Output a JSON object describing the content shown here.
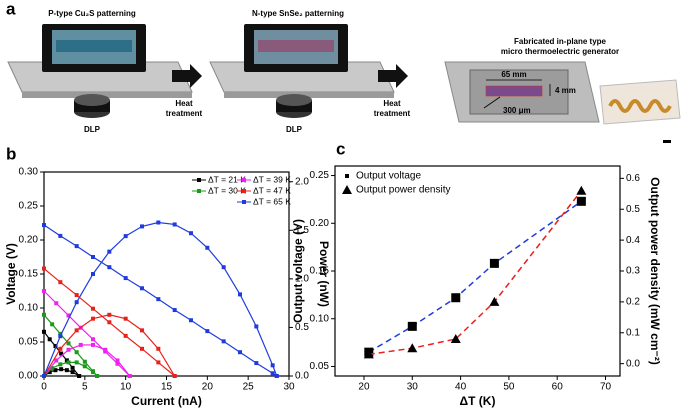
{
  "panel_a": {
    "label": "a",
    "step1": "P-type Cu₂S patterning",
    "step2": "N-type SnSe₂ patterning",
    "step3": [
      "Fabricated in-plane type",
      "micro thermoelectric generator"
    ],
    "light": [
      "DLP",
      "DLP"
    ],
    "heat1": [
      "Heat",
      "treatment"
    ],
    "heat2": [
      "Heat",
      "treatment"
    ],
    "dims": [
      "65 mm",
      "4 mm",
      "300 μm"
    ]
  },
  "chart_data": [
    {
      "type": "line",
      "panel": "b",
      "xlabel": "Current (nA)",
      "ylabel": "Voltage (V)",
      "y2label": "Power (nW)",
      "xlim": [
        0,
        30
      ],
      "xticks": [
        0,
        5,
        10,
        15,
        20,
        25,
        30
      ],
      "ylim": [
        0,
        0.3
      ],
      "yticks": [
        {
          "value": 0,
          "label": "0.00"
        },
        0.05,
        {
          "value": 0.1,
          "label": "0.10"
        },
        0.15,
        {
          "value": 0.2,
          "label": "0.20"
        },
        0.25,
        {
          "value": 0.3,
          "label": "0.30"
        }
      ],
      "y2lim": [
        0,
        2.1
      ],
      "y2ticks": [
        {
          "value": 0,
          "label": "0.0"
        },
        0.5,
        {
          "value": 1,
          "label": "1.0"
        },
        1.5,
        {
          "value": 2,
          "label": "2.0"
        }
      ],
      "legend": "upper right",
      "series": [
        {
          "name": "ΔT = 21 K",
          "color": "#000000",
          "marker": "square",
          "x": [
            0,
            0.7,
            1.4,
            2.1,
            2.8,
            3.5,
            4.3
          ],
          "values": [
            0.065,
            0.054,
            0.044,
            0.033,
            0.023,
            0.012,
            0
          ]
        },
        {
          "name": "ΔT = 30 K",
          "color": "#1a9a1a",
          "marker": "square",
          "x": [
            0,
            1,
            2,
            3,
            4,
            5,
            6,
            6.5
          ],
          "values": [
            0.09,
            0.076,
            0.062,
            0.048,
            0.035,
            0.021,
            0.007,
            0
          ]
        },
        {
          "name": "ΔT = 39 K",
          "color": "#ee22ee",
          "marker": "square",
          "x": [
            0,
            1.5,
            3,
            4.5,
            6,
            7.5,
            9,
            10.5
          ],
          "values": [
            0.125,
            0.107,
            0.089,
            0.071,
            0.054,
            0.036,
            0.018,
            0
          ]
        },
        {
          "name": "ΔT = 47 K",
          "color": "#e8211c",
          "marker": "square",
          "x": [
            0,
            2,
            4,
            6,
            8,
            10,
            12,
            14,
            16
          ],
          "values": [
            0.158,
            0.138,
            0.119,
            0.099,
            0.079,
            0.059,
            0.04,
            0.02,
            0
          ]
        },
        {
          "name": "ΔT = 65 K",
          "color": "#1f3be0",
          "marker": "square",
          "x": [
            0,
            2,
            4,
            6,
            8,
            10,
            12,
            14,
            16,
            18,
            20,
            22,
            24,
            26,
            28,
            28.5
          ],
          "values": [
            0.222,
            0.206,
            0.191,
            0.175,
            0.16,
            0.144,
            0.129,
            0.113,
            0.097,
            0.082,
            0.066,
            0.051,
            0.035,
            0.019,
            0.004,
            0
          ]
        },
        {
          "axis": "y2",
          "color": "#000000",
          "marker": "square",
          "x": [
            0,
            0.7,
            1.4,
            2.1,
            2.8,
            3.5,
            4.3
          ],
          "values": [
            0,
            0.04,
            0.06,
            0.07,
            0.06,
            0.04,
            0
          ]
        },
        {
          "axis": "y2",
          "color": "#1a9a1a",
          "marker": "square",
          "x": [
            0,
            1,
            2,
            3,
            4,
            5,
            6,
            6.5
          ],
          "values": [
            0,
            0.08,
            0.12,
            0.14,
            0.14,
            0.1,
            0.04,
            0
          ]
        },
        {
          "axis": "y2",
          "color": "#ee22ee",
          "marker": "square",
          "x": [
            0,
            1.5,
            3,
            4.5,
            6,
            7.5,
            9,
            10.5
          ],
          "values": [
            0,
            0.16,
            0.27,
            0.32,
            0.32,
            0.27,
            0.16,
            0
          ]
        },
        {
          "axis": "y2",
          "color": "#e8211c",
          "marker": "square",
          "x": [
            0,
            2,
            4,
            6,
            8,
            10,
            12,
            14,
            16
          ],
          "values": [
            0,
            0.28,
            0.47,
            0.59,
            0.63,
            0.59,
            0.47,
            0.28,
            0
          ]
        },
        {
          "axis": "y2",
          "color": "#1f3be0",
          "marker": "square",
          "x": [
            0,
            2,
            4,
            6,
            8,
            10,
            12,
            14,
            16,
            18,
            20,
            22,
            24,
            26,
            28,
            28.5
          ],
          "values": [
            0,
            0.41,
            0.76,
            1.05,
            1.28,
            1.44,
            1.54,
            1.58,
            1.56,
            1.47,
            1.32,
            1.12,
            0.84,
            0.51,
            0.11,
            0
          ]
        }
      ]
    },
    {
      "type": "scatter",
      "panel": "c",
      "xlabel": "ΔT (K)",
      "ylabel": "Output voltage (V)",
      "y2label": "Output power density (mW cm⁻²)",
      "x": [
        21,
        30,
        39,
        47,
        65
      ],
      "xlim": [
        14,
        73
      ],
      "xticks": [
        20,
        30,
        40,
        50,
        60,
        70
      ],
      "ylim": [
        0.04,
        0.26
      ],
      "yticks": [
        0.05,
        {
          "value": 0.1,
          "label": "0.10"
        },
        0.15,
        {
          "value": 0.2,
          "label": "0.20"
        },
        0.25
      ],
      "y2lim": [
        -0.04,
        0.64
      ],
      "y2ticks": [
        {
          "value": 0,
          "label": "0.0"
        },
        0.1,
        0.2,
        0.3,
        0.4,
        0.5,
        0.6
      ],
      "legend": "upper left",
      "series": [
        {
          "name": "Output voltage",
          "marker": "square",
          "marker_color": "#000000",
          "color": "#1f3be0",
          "dash": true,
          "values": [
            0.065,
            0.092,
            0.122,
            0.158,
            0.223
          ]
        },
        {
          "name": "Output power density",
          "axis": "y2",
          "marker": "triangle",
          "marker_color": "#000000",
          "color": "#e8211c",
          "dash": true,
          "values": [
            0.03,
            0.05,
            0.08,
            0.2,
            0.56
          ]
        }
      ]
    }
  ]
}
